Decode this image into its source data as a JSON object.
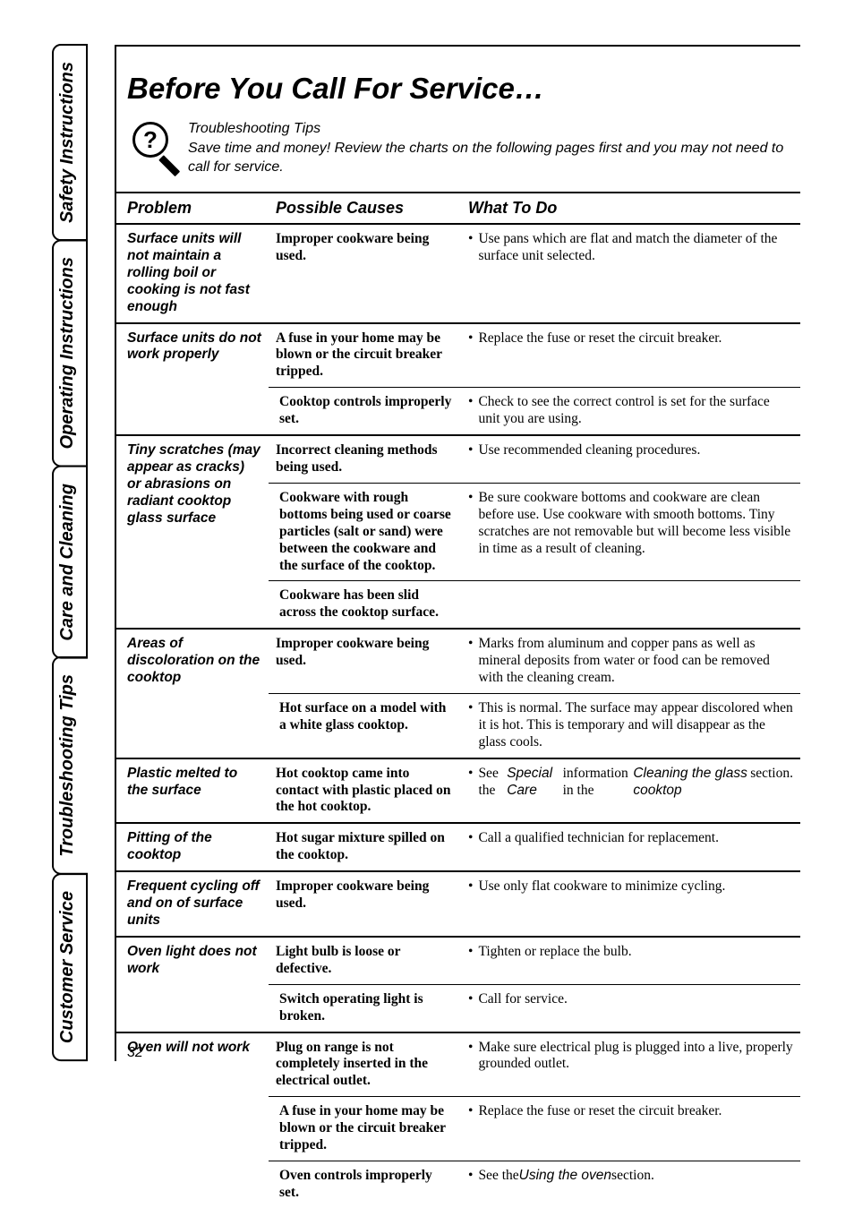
{
  "page_number": "32",
  "title": "Before You Call For Service…",
  "intro": {
    "heading": "Troubleshooting Tips",
    "subtext": "Save time and money! Review the charts on the following pages first and you may not need to call for service."
  },
  "side_tabs": [
    "Customer Service",
    "Troubleshooting Tips",
    "Care and Cleaning",
    "Operating Instructions",
    "Safety Instructions"
  ],
  "active_tab_index": 1,
  "table": {
    "headers": [
      "Problem",
      "Possible Causes",
      "What To Do"
    ],
    "rows": [
      {
        "sep": "top",
        "problem": "Surface units will not maintain a rolling boil or cooking is not fast enough",
        "cause": "Improper cookware being used.",
        "todo": "Use pans which are flat and match the diameter of the surface unit selected."
      },
      {
        "sep": "top",
        "problem": "Surface units do not work properly",
        "cause": "A fuse in your home may be blown or the circuit breaker tripped.",
        "todo": "Replace the fuse or reset the circuit breaker."
      },
      {
        "sep": "thin",
        "problem": "",
        "cause": "Cooktop controls improperly set.",
        "todo": "Check to see the correct control is set for the surface unit you are using."
      },
      {
        "sep": "top",
        "problem": "Tiny scratches (may appear as cracks) or abrasions on radiant cooktop glass surface",
        "cause": "Incorrect cleaning methods being used.",
        "todo": "Use recommended cleaning procedures."
      },
      {
        "sep": "thin",
        "problem": "",
        "cause": "Cookware with rough bottoms being used or coarse particles (salt or sand) were between the cookware and the surface of the cooktop.",
        "todo": "Be sure cookware bottoms and cookware are clean before use. Use cookware with smooth bottoms. Tiny scratches are not removable but will become less visible in time as a result of cleaning."
      },
      {
        "sep": "thin",
        "problem": "",
        "cause": "Cookware has been slid across the cooktop surface.",
        "todo": ""
      },
      {
        "sep": "top",
        "problem": "Areas of discoloration on the cooktop",
        "cause": "Improper cookware being used.",
        "todo": "Marks from aluminum and copper pans as well as mineral deposits from water or food can be removed with the cleaning cream."
      },
      {
        "sep": "thin",
        "problem": "",
        "cause": "Hot surface on a model with a white glass cooktop.",
        "todo": "This is normal. The surface may appear discolored when it is hot. This is temporary and will disappear as the glass cools."
      },
      {
        "sep": "top",
        "problem": "Plastic melted to the surface",
        "cause": "Hot cooktop came into contact with plastic placed on the hot cooktop.",
        "todo_html": "See the <span class=\"ital\">Special Care</span> information in the <span class=\"ital\">Cleaning the glass cooktop</span> section."
      },
      {
        "sep": "top",
        "problem": "Pitting of the cooktop",
        "cause": "Hot sugar mixture spilled on the cooktop.",
        "todo": "Call a qualified technician for replacement."
      },
      {
        "sep": "top",
        "problem": "Frequent cycling off and on of surface units",
        "cause": "Improper cookware being used.",
        "todo": "Use only flat cookware to minimize cycling."
      },
      {
        "sep": "top",
        "problem": "Oven light does not work",
        "cause": "Light bulb is loose or defective.",
        "todo": "Tighten or replace the bulb."
      },
      {
        "sep": "thin",
        "problem": "",
        "cause": "Switch operating light is broken.",
        "todo": "Call for service."
      },
      {
        "sep": "top",
        "problem": "Oven will not work",
        "cause": "Plug on range is not completely inserted in the electrical outlet.",
        "todo": "Make sure electrical plug is plugged into a live, properly grounded outlet."
      },
      {
        "sep": "thin",
        "problem": "",
        "cause": "A fuse in your home may be blown or the circuit breaker tripped.",
        "todo": "Replace the fuse or reset the circuit breaker."
      },
      {
        "sep": "thin",
        "problem": "",
        "cause": "Oven controls improperly set.",
        "todo_html": "See the <span class=\"ital\">Using the oven</span> section."
      }
    ]
  },
  "colors": {
    "text": "#000000",
    "background": "#ffffff",
    "border": "#000000"
  }
}
